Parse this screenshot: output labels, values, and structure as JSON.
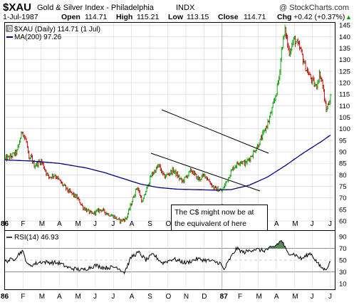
{
  "header": {
    "symbol": "$XAU",
    "name": "Gold & Silver Index - Philadelphia",
    "exchange": "INDX",
    "watermark": "@ StockCharts.com",
    "date": "1-Jul-1987",
    "open_label": "Open",
    "open": "114.71",
    "high_label": "High",
    "high": "115.21",
    "low_label": "Low",
    "low": "113.15",
    "close_label": "Close",
    "close": "114.71",
    "chg_label": "Chg",
    "chg": "+0.42 (+0.37%)",
    "chg_arrow": "▲"
  },
  "legend": {
    "price": "$XAU (Daily) 114.71 (1 Jul)",
    "ma": "MA(200) 97.26",
    "rsi": "RSI(14) 46.93"
  },
  "annotation": {
    "line1": "The C$ might now be at",
    "line2": "the equivalent of here"
  },
  "colors": {
    "up": "#00a000",
    "down": "#c00000",
    "ma": "#000080",
    "rsi_line": "#000000",
    "rsi_fill": "#5a8a5a",
    "grid": "#d8d8d8"
  },
  "chart_data": [
    {
      "type": "line",
      "title": "$XAU (Daily)",
      "style": "high-low-close bars with 200-day moving average",
      "x_period": [
        "1986-01-01",
        "1987-07-01"
      ],
      "x_tick_labels": [
        "86",
        "F",
        "M",
        "A",
        "M",
        "J",
        "J",
        "A",
        "S",
        "O",
        "N",
        "D",
        "87",
        "F",
        "M",
        "A",
        "M",
        "J",
        "J"
      ],
      "ylim": [
        56,
        146
      ],
      "y_ticks": [
        60,
        65,
        70,
        75,
        80,
        85,
        90,
        95,
        100,
        105,
        110,
        115,
        120,
        125,
        130,
        135,
        140,
        145
      ],
      "series": [
        {
          "name": "$XAU (Daily)",
          "keypoints_x": [
            0.0,
            0.33,
            0.66,
            0.95,
            1.2,
            1.33,
            1.45,
            1.6,
            2.0,
            2.4,
            2.75,
            3.05,
            3.5,
            4.0,
            4.3,
            4.8,
            5.3,
            5.7,
            6.0,
            6.35,
            6.7,
            7.0,
            7.3,
            7.6,
            7.75,
            8.1,
            8.5,
            8.8,
            9.3,
            9.8,
            10.3,
            10.7,
            11.05,
            11.4,
            11.6,
            12.0,
            12.3,
            12.6,
            13.0,
            13.3,
            13.6,
            14.0,
            14.3,
            14.6,
            14.9,
            15.15,
            15.3,
            15.5,
            15.7,
            16.0,
            16.35,
            16.6,
            16.9,
            17.2,
            17.4,
            17.55,
            17.75,
            17.9,
            18.0
          ],
          "keypoints_close": [
            87,
            88,
            90,
            99,
            94,
            86,
            88,
            84,
            86,
            79,
            80,
            77,
            73,
            70,
            66,
            63,
            65,
            63,
            62,
            60,
            61,
            68,
            75,
            68,
            72,
            80,
            84,
            79,
            82,
            77,
            82,
            78,
            80,
            76,
            74,
            73,
            78,
            83,
            86,
            85,
            88,
            93,
            98,
            104,
            112,
            122,
            135,
            143,
            133,
            139,
            134,
            127,
            122,
            118,
            124,
            120,
            108,
            111,
            114.71
          ]
        },
        {
          "name": "MA(200)",
          "keypoints_x": [
            0.0,
            1.5,
            3.0,
            4.5,
            5.5,
            6.5,
            7.5,
            8.5,
            9.5,
            10.5,
            11.5,
            12.5,
            13.5,
            14.5,
            15.5,
            16.5,
            17.5,
            18.0
          ],
          "keypoints_value": [
            86.5,
            86.0,
            85.0,
            83.0,
            81.0,
            78.5,
            76.0,
            74.5,
            73.8,
            73.6,
            73.4,
            73.6,
            75.5,
            79.0,
            84.0,
            89.5,
            94.5,
            97.26
          ]
        }
      ],
      "annotations": [
        "downward price channel Sep-86 to Jan-87",
        "arrow at Jan-87 low"
      ]
    },
    {
      "type": "line",
      "title": "RSI(14)",
      "x_period": [
        "1986-01-01",
        "1987-07-01"
      ],
      "x_tick_labels": [
        "86",
        "F",
        "M",
        "A",
        "M",
        "J",
        "J",
        "A",
        "S",
        "O",
        "N",
        "D",
        "87",
        "F",
        "M",
        "A",
        "M",
        "J",
        "J"
      ],
      "ylim": [
        0,
        100
      ],
      "y_ticks": [
        10,
        30,
        50,
        70,
        90
      ],
      "reference_lines": [
        30,
        70
      ],
      "series": [
        {
          "name": "RSI(14)",
          "keypoints_x": [
            0.0,
            0.5,
            0.95,
            1.3,
            2.0,
            3.0,
            3.5,
            4.3,
            5.0,
            5.5,
            6.2,
            6.6,
            7.0,
            7.4,
            7.8,
            8.2,
            8.7,
            9.3,
            10.0,
            10.6,
            11.3,
            11.9,
            12.1,
            12.4,
            12.8,
            13.2,
            13.8,
            14.3,
            14.9,
            15.3,
            15.6,
            16.0,
            16.4,
            16.9,
            17.4,
            17.7,
            18.0
          ],
          "keypoints_value": [
            48,
            52,
            66,
            40,
            47,
            45,
            37,
            33,
            41,
            37,
            38,
            29,
            56,
            63,
            50,
            60,
            45,
            52,
            45,
            52,
            49,
            45,
            33,
            50,
            70,
            63,
            69,
            66,
            73,
            84,
            63,
            60,
            52,
            62,
            40,
            33,
            46.93
          ]
        }
      ]
    }
  ]
}
